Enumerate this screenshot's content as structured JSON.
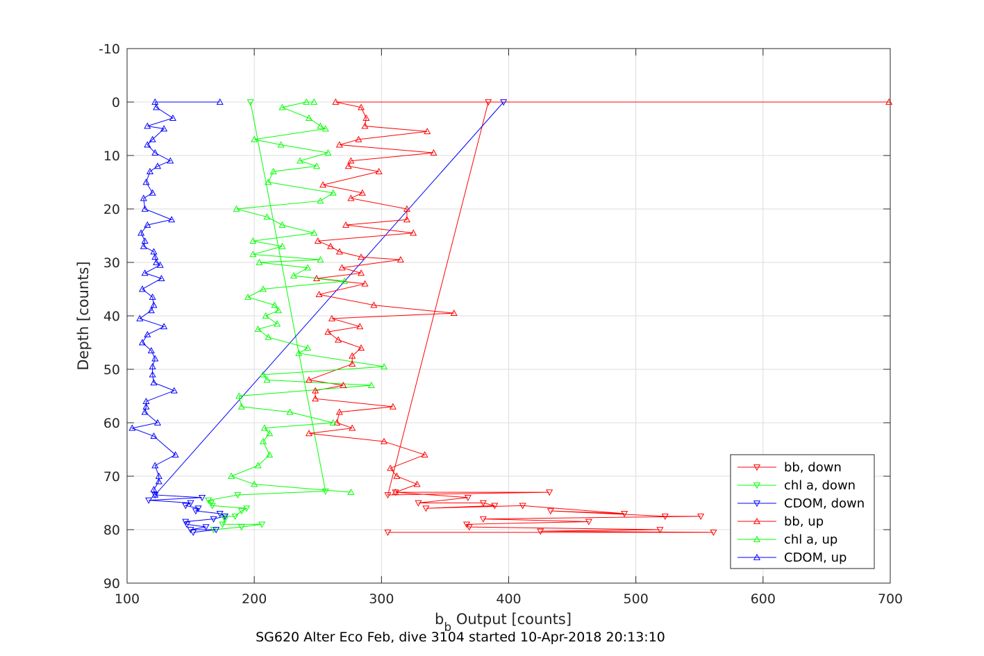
{
  "chart_data": {
    "type": "line",
    "title": "",
    "xlabel_main": "b",
    "xlabel_sub": "b",
    "xlabel_rest": " Output [counts]",
    "ylabel": "Depth [counts]",
    "caption": "SG620 Alter Eco Feb, dive 3104 started 10-Apr-2018 20:13:10",
    "xlim": [
      100,
      700
    ],
    "ylim": [
      -10,
      90
    ],
    "y_reversed": true,
    "grid": true,
    "legend_position": "bottom-right",
    "xticks": [
      "100",
      "200",
      "300",
      "400",
      "500",
      "600",
      "700"
    ],
    "yticks": [
      "-10",
      "0",
      "10",
      "20",
      "30",
      "40",
      "50",
      "60",
      "70",
      "80",
      "90"
    ],
    "series": [
      {
        "name": "bb, down",
        "color": "#ff0000",
        "marker": "triangle-down",
        "x": [
          384,
          305,
          432,
          311,
          368,
          329,
          380,
          389,
          335,
          411,
          491,
          433,
          523,
          551,
          380,
          463,
          367,
          369,
          519,
          425,
          561,
          305
        ],
        "y": [
          0,
          73.5,
          73,
          73,
          74,
          75,
          75,
          75.5,
          76,
          75.5,
          77,
          76.5,
          77.5,
          77.5,
          78,
          78.5,
          79,
          79.5,
          80,
          80.3,
          80.5,
          80.5
        ]
      },
      {
        "name": "chl a, down",
        "color": "#00ff00",
        "marker": "triangle-down",
        "x": [
          197,
          256,
          187,
          164,
          166,
          167,
          194,
          190,
          185,
          176,
          177,
          175,
          206,
          190,
          168
        ],
        "y": [
          0,
          72.8,
          73.5,
          74.5,
          75,
          75.5,
          76,
          76.5,
          77.5,
          77.5,
          78,
          79,
          79,
          79.5,
          80
        ]
      },
      {
        "name": "CDOM, down",
        "color": "#0000ff",
        "marker": "triangle-down",
        "x": [
          396,
          122,
          159,
          117,
          150,
          146,
          156,
          154,
          173,
          177,
          168,
          146,
          147,
          162,
          150,
          170,
          152
        ],
        "y": [
          0,
          73.5,
          74,
          74.5,
          75,
          75.5,
          76,
          76.5,
          77,
          77.5,
          78,
          78.5,
          79,
          79.5,
          80,
          80,
          80.5
        ]
      },
      {
        "name": "bb, up",
        "color": "#ff0000",
        "marker": "triangle-up",
        "x": [
          699,
          264,
          284,
          288,
          287,
          336,
          282,
          267,
          341,
          276,
          274,
          298,
          254,
          285,
          276,
          320,
          320,
          272,
          325,
          250,
          260,
          267,
          284,
          315,
          269,
          284,
          249,
          287,
          251,
          294,
          357,
          261,
          283,
          258,
          266,
          284,
          277,
          277,
          243,
          270,
          248,
          248,
          309,
          267,
          265,
          277,
          243,
          302,
          334,
          307,
          312,
          328,
          311
        ],
        "y": [
          0,
          0,
          1,
          3,
          4.5,
          5.5,
          7,
          8,
          9.5,
          11,
          12,
          13,
          15.5,
          17,
          18,
          20,
          22,
          23,
          24.5,
          26,
          27,
          28,
          29,
          29.5,
          31,
          32,
          33,
          34,
          36,
          38,
          39.5,
          40.5,
          42,
          43,
          44.5,
          46,
          47.5,
          49,
          52,
          53,
          54,
          55.5,
          57,
          58,
          60,
          61,
          62,
          63.5,
          66,
          68.5,
          70,
          71.5,
          73
        ]
      },
      {
        "name": "chl a, up",
        "color": "#00ff00",
        "marker": "triangle-up",
        "x": [
          247,
          241,
          222,
          243,
          252,
          256,
          200,
          221,
          258,
          236,
          249,
          215,
          211,
          262,
          252,
          186,
          210,
          222,
          247,
          199,
          222,
          199,
          252,
          204,
          242,
          231,
          271,
          207,
          195,
          216,
          219,
          209,
          218,
          203,
          211,
          242,
          235,
          302,
          207,
          210,
          292,
          188,
          190,
          228,
          262,
          208,
          212,
          207,
          212,
          203,
          182,
          200,
          276
        ],
        "y": [
          0,
          0,
          1,
          3,
          4.5,
          5,
          7,
          8,
          9.5,
          11,
          12,
          13,
          15,
          17,
          18.5,
          20,
          21.5,
          23,
          24.5,
          26,
          27,
          28.5,
          29.5,
          30,
          31,
          32.5,
          33.5,
          35,
          36.5,
          38,
          39,
          40,
          41.5,
          42.5,
          44,
          46,
          47,
          49.5,
          51,
          52,
          53,
          55,
          57,
          58,
          60,
          61,
          62,
          63.5,
          66,
          68,
          70,
          71.5,
          73
        ]
      },
      {
        "name": "CDOM, up",
        "color": "#0000ff",
        "marker": "triangle-up",
        "x": [
          173,
          122,
          123,
          136,
          116,
          129,
          120,
          116,
          122,
          134,
          124,
          118,
          115,
          120,
          113,
          114,
          135,
          116,
          111,
          114,
          113,
          121,
          122,
          123,
          126,
          114,
          127,
          112,
          120,
          121,
          119,
          110,
          129,
          116,
          112,
          119,
          122,
          120,
          120,
          121,
          137,
          115,
          115,
          114,
          124,
          104,
          121,
          138,
          122,
          125,
          125,
          121,
          122
        ],
        "y": [
          0,
          0,
          1,
          3,
          4.5,
          5,
          7,
          8,
          9.5,
          11,
          12,
          13,
          15,
          17,
          18,
          20,
          22,
          23,
          24.5,
          26,
          27,
          28,
          29,
          30,
          30.5,
          32,
          33,
          35,
          36.5,
          38,
          39,
          40.5,
          42,
          43.5,
          45,
          46.5,
          48,
          49.5,
          51,
          52.5,
          54,
          56,
          57,
          58,
          60,
          61,
          62.5,
          66,
          68,
          70,
          71,
          72.5,
          73.5
        ]
      }
    ]
  }
}
